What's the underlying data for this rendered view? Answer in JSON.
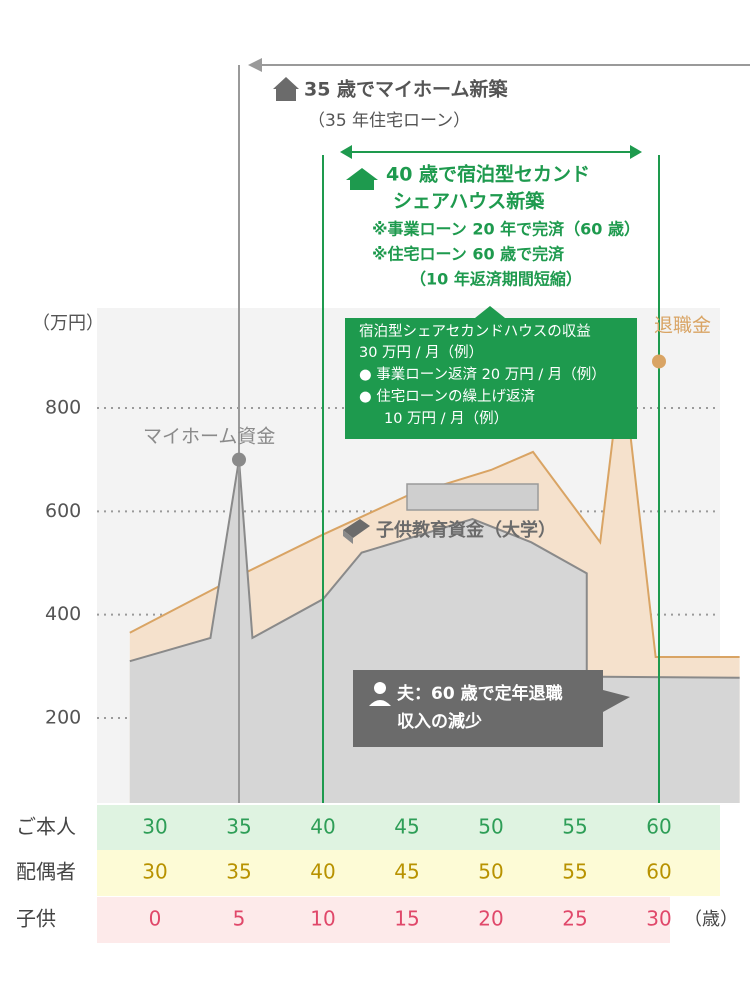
{
  "chart_data": {
    "type": "area",
    "ylabel": "（万円）",
    "y_ticks": [
      "800",
      "600",
      "400",
      "200"
    ],
    "y_tick_values": [
      800,
      600,
      400,
      200
    ],
    "ylim": [
      0,
      950
    ],
    "grid": "dotted horizontal",
    "x_age_self": [
      30,
      35,
      40,
      45,
      50,
      55,
      60
    ],
    "series": [
      {
        "name": "",
        "kind": "income_band_tan",
        "color": "#f5e1cc",
        "stroke": "#d9a464",
        "points": [
          [
            28.5,
            365
          ],
          [
            35,
            475
          ],
          [
            40,
            555
          ],
          [
            45,
            630
          ],
          [
            50,
            680
          ],
          [
            52.5,
            715
          ],
          [
            56.5,
            540
          ],
          [
            57.8,
            890
          ],
          [
            59.8,
            318
          ],
          [
            64.8,
            318
          ]
        ]
      },
      {
        "name": "",
        "kind": "savings_gray",
        "color": "#d6d6d6",
        "stroke": "#8a8a8a",
        "points": [
          [
            28.5,
            310
          ],
          [
            33.3,
            355
          ],
          [
            35,
            700
          ],
          [
            35.8,
            355
          ],
          [
            40,
            430
          ],
          [
            42.3,
            520
          ],
          [
            48.9,
            585
          ],
          [
            52.4,
            540
          ],
          [
            55.7,
            480
          ],
          [
            55.7,
            280
          ],
          [
            64.8,
            278
          ]
        ]
      }
    ],
    "markers": [
      {
        "label": "マイホーム資金",
        "age": 35,
        "value": 700,
        "color": "#8a8a8a"
      },
      {
        "label": "退職金",
        "age": 60,
        "value": 890,
        "color": "#d9a464"
      }
    ],
    "annotations": {
      "education": "子供教育資金（大学）",
      "home_title": "35 歳でマイホーム新築",
      "home_sub": "（35 年住宅ローン）",
      "share_title_1": "40 歳で宿泊型セカンド",
      "share_title_2": "シェアハウス新築",
      "share_note_1": "※事業ローン 20 年で完済（60 歳）",
      "share_note_2": "※住宅ローン 60 歳で完済",
      "share_note_3": "（10 年返済期間短縮）",
      "green_box": [
        "宿泊型シェアセカンドハウスの収益",
        "30 万円 / 月（例）",
        "● 事業ローン返済 20 万円 / 月（例）",
        "● 住宅ローンの繰上げ返済",
        "10 万円 / 月（例）"
      ],
      "gray_box": [
        "夫：60 歳で定年退職",
        "収入の減少"
      ]
    },
    "rows": [
      {
        "label": "ご本人",
        "values": [
          "30",
          "35",
          "40",
          "45",
          "50",
          "55",
          "60"
        ],
        "color": "#2e9e57",
        "bg": "#dff3e1"
      },
      {
        "label": "配偶者",
        "values": [
          "30",
          "35",
          "40",
          "45",
          "50",
          "55",
          "60"
        ],
        "color": "#b89200",
        "bg": "#fdfbd6"
      },
      {
        "label": "子供",
        "values": [
          "0",
          "5",
          "10",
          "15",
          "20",
          "25",
          "30"
        ],
        "color": "#e0486a",
        "bg": "#fdeaea"
      }
    ],
    "age_unit": "（歳）"
  },
  "colors": {
    "green": "#1e9a4e",
    "gray_text": "#8a8a8a",
    "tan": "#d9a464",
    "box_gray": "#6b6b6b"
  }
}
